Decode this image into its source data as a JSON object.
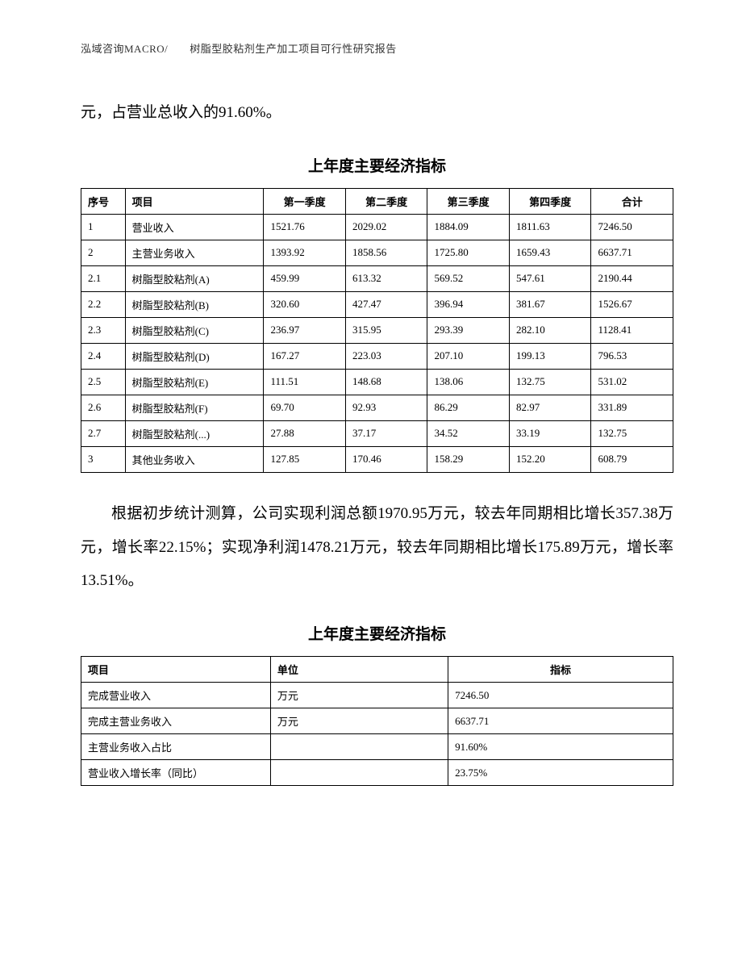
{
  "header": "泓域咨询MACRO/　　树脂型胶粘剂生产加工项目可行性研究报告",
  "body_text_1": "元，占营业总收入的91.60%。",
  "table1_title": "上年度主要经济指标",
  "table1": {
    "headers": [
      "序号",
      "项目",
      "第一季度",
      "第二季度",
      "第三季度",
      "第四季度",
      "合计"
    ],
    "rows": [
      [
        "1",
        "营业收入",
        "1521.76",
        "2029.02",
        "1884.09",
        "1811.63",
        "7246.50"
      ],
      [
        "2",
        "主营业务收入",
        "1393.92",
        "1858.56",
        "1725.80",
        "1659.43",
        "6637.71"
      ],
      [
        "2.1",
        "树脂型胶粘剂(A)",
        "459.99",
        "613.32",
        "569.52",
        "547.61",
        "2190.44"
      ],
      [
        "2.2",
        "树脂型胶粘剂(B)",
        "320.60",
        "427.47",
        "396.94",
        "381.67",
        "1526.67"
      ],
      [
        "2.3",
        "树脂型胶粘剂(C)",
        "236.97",
        "315.95",
        "293.39",
        "282.10",
        "1128.41"
      ],
      [
        "2.4",
        "树脂型胶粘剂(D)",
        "167.27",
        "223.03",
        "207.10",
        "199.13",
        "796.53"
      ],
      [
        "2.5",
        "树脂型胶粘剂(E)",
        "111.51",
        "148.68",
        "138.06",
        "132.75",
        "531.02"
      ],
      [
        "2.6",
        "树脂型胶粘剂(F)",
        "69.70",
        "92.93",
        "86.29",
        "82.97",
        "331.89"
      ],
      [
        "2.7",
        "树脂型胶粘剂(...)",
        "27.88",
        "37.17",
        "34.52",
        "33.19",
        "132.75"
      ],
      [
        "3",
        "其他业务收入",
        "127.85",
        "170.46",
        "158.29",
        "152.20",
        "608.79"
      ]
    ]
  },
  "body_text_2": "根据初步统计测算，公司实现利润总额1970.95万元，较去年同期相比增长357.38万元，增长率22.15%；实现净利润1478.21万元，较去年同期相比增长175.89万元，增长率13.51%。",
  "table2_title": "上年度主要经济指标",
  "table2": {
    "headers": [
      "项目",
      "单位",
      "指标"
    ],
    "rows": [
      [
        "完成营业收入",
        "万元",
        "7246.50"
      ],
      [
        "完成主营业务收入",
        "万元",
        "6637.71"
      ],
      [
        "主营业务收入占比",
        "",
        "91.60%"
      ],
      [
        "营业收入增长率（同比）",
        "",
        "23.75%"
      ]
    ]
  }
}
